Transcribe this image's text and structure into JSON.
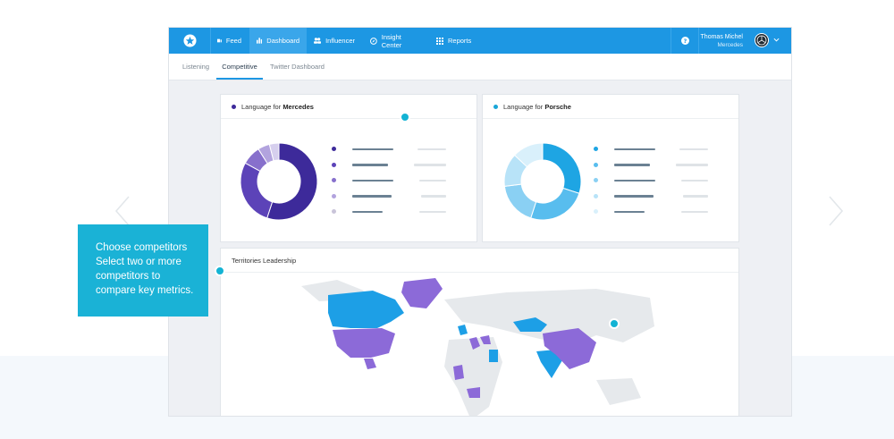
{
  "nav": {
    "items": [
      {
        "label": "Feed",
        "icon": "feed-icon",
        "active": false
      },
      {
        "label": "Dashboard",
        "icon": "bar-chart-icon",
        "active": true
      },
      {
        "label": "Influencer",
        "icon": "users-icon",
        "active": false
      },
      {
        "label": "Insight Center",
        "icon": "compass-icon",
        "active": false
      },
      {
        "label": "Reports",
        "icon": "grid-icon",
        "active": false
      }
    ],
    "help_icon": "question-icon"
  },
  "user": {
    "name": "Thomas Michel",
    "company": "Mercedes"
  },
  "tabs": [
    {
      "label": "Listening",
      "active": false
    },
    {
      "label": "Competitive",
      "active": true
    },
    {
      "label": "Twitter Dashboard",
      "active": false
    }
  ],
  "cards": {
    "mercedes": {
      "title_prefix": "Language for",
      "title_brand": "Mercedes",
      "accent": "#3d2a9a",
      "colors": [
        "#3d2a9a",
        "#5c43b8",
        "#8770cc",
        "#b2a3de",
        "#d6cfee"
      ],
      "values": [
        55,
        28,
        8,
        5,
        4
      ]
    },
    "porsche": {
      "title_prefix": "Language for",
      "title_brand": "Porsche",
      "accent": "#19a6d8",
      "colors": [
        "#1ea5e3",
        "#58bdee",
        "#8ad0f3",
        "#b8e3f8",
        "#d9f0fb"
      ],
      "values": [
        30,
        25,
        18,
        14,
        13
      ]
    },
    "territories": {
      "title": "Territories Leadership"
    }
  },
  "hint": {
    "title": "Choose competitors",
    "body": "Select two or more competitors to compare key metrics."
  },
  "colors": {
    "nav": "#1d97e3",
    "hint": "#1ab2d6",
    "marker": "#13b3d4",
    "map_purple": "#8c6ad8",
    "map_blue": "#1d9fe6",
    "map_gray": "#e6e9ec"
  }
}
